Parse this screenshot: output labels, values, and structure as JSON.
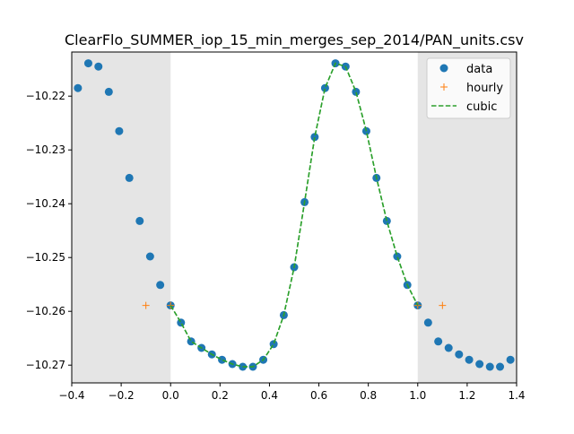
{
  "chart_data": {
    "type": "scatter",
    "title": "ClearFlo_SUMMER_iop_15_min_merges_sep_2014/PAN_units.csv",
    "xlabel": "",
    "ylabel": "",
    "xlim": [
      -0.4,
      1.4
    ],
    "ylim": [
      -10.2733,
      -10.2118
    ],
    "x_ticks": [
      -0.4,
      -0.2,
      0.0,
      0.2,
      0.4,
      0.6,
      0.8,
      1.0,
      1.2,
      1.4
    ],
    "x_tick_labels": [
      "−0.4",
      "−0.2",
      "0.0",
      "0.2",
      "0.4",
      "0.6",
      "0.8",
      "1.0",
      "1.2",
      "1.4"
    ],
    "y_ticks": [
      -10.22,
      -10.23,
      -10.24,
      -10.25,
      -10.26,
      -10.27
    ],
    "y_tick_labels": [
      "−10.22",
      "−10.23",
      "−10.24",
      "−10.25",
      "−10.26",
      "−10.27"
    ],
    "grid": false,
    "legend_position": "top-right",
    "shaded_ranges": [
      [
        -0.4,
        0.0
      ],
      [
        1.0,
        1.4
      ]
    ],
    "colors": {
      "data": "#1f77b4",
      "hourly": "#ff7f0e",
      "cubic": "#2ca02c",
      "shade": "#e5e5e5"
    },
    "series": [
      {
        "name": "data",
        "style": "marker",
        "x": [
          -0.375,
          -0.333,
          -0.292,
          -0.25,
          -0.208,
          -0.167,
          -0.125,
          -0.083,
          -0.042,
          0.0,
          0.042,
          0.083,
          0.125,
          0.167,
          0.208,
          0.25,
          0.292,
          0.333,
          0.375,
          0.417,
          0.458,
          0.5,
          0.542,
          0.583,
          0.625,
          0.667,
          0.708,
          0.75,
          0.792,
          0.833,
          0.875,
          0.917,
          0.958,
          1.0,
          1.042,
          1.083,
          1.125,
          1.167,
          1.208,
          1.25,
          1.292,
          1.333,
          1.375
        ],
        "y": [
          -10.2185,
          -10.2139,
          -10.2145,
          -10.2192,
          -10.2265,
          -10.2352,
          -10.2432,
          -10.2498,
          -10.2551,
          -10.2589,
          -10.2621,
          -10.2656,
          -10.2668,
          -10.268,
          -10.269,
          -10.2698,
          -10.2703,
          -10.2703,
          -10.269,
          -10.2661,
          -10.2607,
          -10.2518,
          -10.2397,
          -10.2276,
          -10.2185,
          -10.2139,
          -10.2145,
          -10.2192,
          -10.2265,
          -10.2352,
          -10.2432,
          -10.2498,
          -10.2551,
          -10.2589,
          -10.2621,
          -10.2656,
          -10.2668,
          -10.268,
          -10.269,
          -10.2698,
          -10.2703,
          -10.2703,
          -10.269
        ]
      },
      {
        "name": "hourly",
        "style": "plus",
        "x": [
          -0.1,
          0.0,
          1.0,
          1.1
        ],
        "y": [
          -10.2589,
          -10.2589,
          -10.2589,
          -10.2589
        ]
      },
      {
        "name": "cubic",
        "style": "dashed-line",
        "x": [
          0.0,
          0.042,
          0.083,
          0.125,
          0.167,
          0.208,
          0.25,
          0.292,
          0.333,
          0.375,
          0.417,
          0.458,
          0.5,
          0.542,
          0.583,
          0.625,
          0.667,
          0.708,
          0.75,
          0.792,
          0.833,
          0.875,
          0.917,
          0.958,
          1.0
        ],
        "y": [
          -10.2589,
          -10.2621,
          -10.2656,
          -10.2668,
          -10.268,
          -10.269,
          -10.2698,
          -10.2703,
          -10.2703,
          -10.269,
          -10.2661,
          -10.2607,
          -10.2518,
          -10.2397,
          -10.2276,
          -10.2185,
          -10.2139,
          -10.2145,
          -10.2192,
          -10.2265,
          -10.2352,
          -10.2432,
          -10.2498,
          -10.2551,
          -10.2589
        ]
      }
    ]
  }
}
